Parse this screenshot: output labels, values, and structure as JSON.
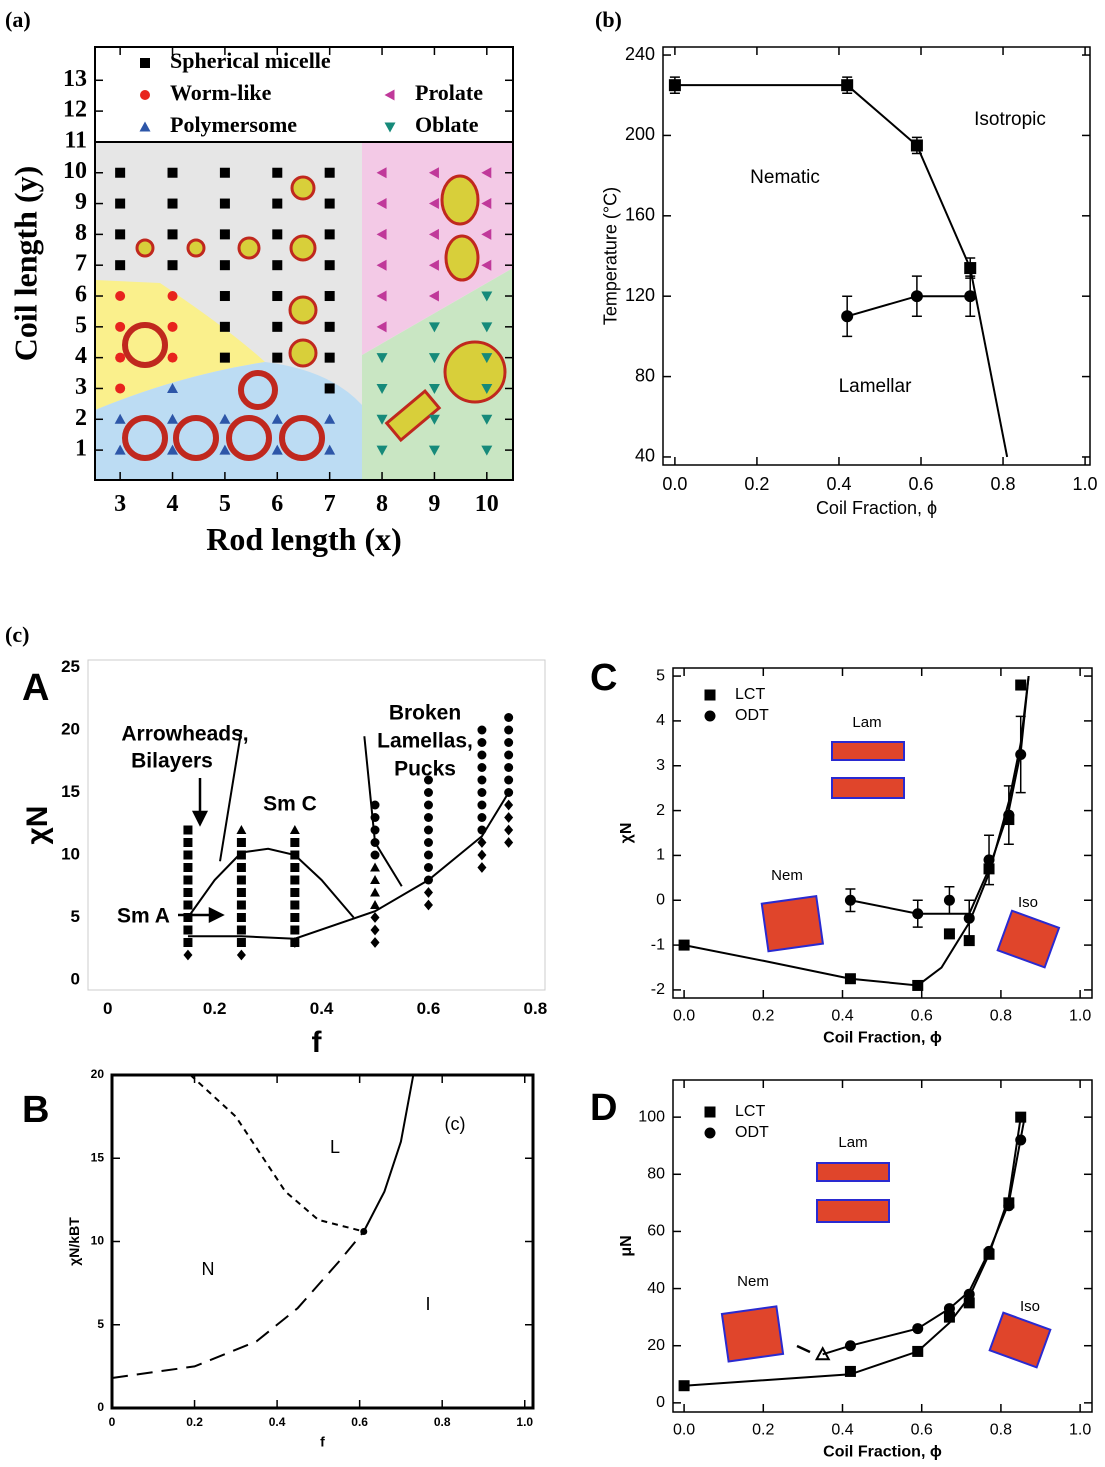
{
  "section_label": "(c)",
  "chart_data": [
    {
      "type": "scatter",
      "label": "(a)",
      "xlabel": "Rod length (x)",
      "ylabel": "Coil length (y)",
      "xlim": [
        2.52,
        10.5
      ],
      "ylim": [
        0.03,
        14.08
      ],
      "xticks": [
        3,
        4,
        5,
        6,
        7,
        8,
        9,
        10
      ],
      "yticks": [
        1,
        2,
        3,
        4,
        5,
        6,
        7,
        8,
        9,
        10,
        11,
        12,
        13
      ],
      "series": [
        {
          "name": "Spherical micelle",
          "color": "#000000",
          "marker": "square",
          "x": [
            3,
            3,
            3,
            3,
            4,
            4,
            4,
            4,
            5,
            5,
            5,
            5,
            5,
            5,
            5,
            6,
            6,
            6,
            6,
            6,
            6,
            6,
            7,
            7,
            7,
            7,
            7,
            7,
            7,
            7
          ],
          "values": [
            7,
            8,
            9,
            10,
            7,
            8,
            9,
            10,
            4,
            5,
            6,
            7,
            8,
            9,
            10,
            4,
            5,
            6,
            7,
            8,
            9,
            10,
            3,
            4,
            5,
            6,
            7,
            8,
            9,
            10
          ]
        },
        {
          "name": "Worm-like",
          "color": "#e8231d",
          "marker": "circle",
          "x": [
            3,
            3,
            3,
            3,
            4,
            4,
            4
          ],
          "values": [
            3,
            4,
            5,
            6,
            4,
            5,
            6
          ]
        },
        {
          "name": "Prolate",
          "color": "#c0399a",
          "marker": "triangle-left",
          "x": [
            8,
            8,
            8,
            8,
            8,
            8,
            9,
            9,
            9,
            9,
            9,
            10,
            10,
            10,
            10
          ],
          "values": [
            5,
            6,
            7,
            8,
            9,
            10,
            6,
            7,
            8,
            9,
            10,
            7,
            8,
            9,
            10
          ]
        },
        {
          "name": "Polymersome",
          "color": "#2d56a8",
          "marker": "triangle-up",
          "x": [
            3,
            3,
            4,
            4,
            4,
            5,
            5,
            6,
            6,
            7,
            7
          ],
          "values": [
            1,
            2,
            1,
            2,
            3,
            1,
            2,
            1,
            2,
            1,
            2
          ]
        },
        {
          "name": "Oblate",
          "color": "#168a7a",
          "marker": "triangle-down",
          "x": [
            8,
            8,
            8,
            8,
            9,
            9,
            9,
            9,
            9,
            10,
            10,
            10,
            10,
            10,
            10
          ],
          "values": [
            1,
            2,
            3,
            4,
            1,
            2,
            3,
            4,
            5,
            1,
            2,
            3,
            4,
            5,
            6
          ]
        }
      ]
    },
    {
      "type": "line",
      "label": "(b)",
      "xlabel": "Coil Fraction, ϕ",
      "ylabel": "Temperature (°C)",
      "xlim": [
        -0.029,
        1.012
      ],
      "ylim": [
        36,
        244
      ],
      "xticks": [
        {
          "value": 0,
          "label": "0.0"
        },
        0.2,
        0.4,
        0.6,
        0.8,
        {
          "value": 1,
          "label": "1.0"
        }
      ],
      "yticks": [
        40,
        80,
        120,
        160,
        200,
        240
      ],
      "annotations": [
        "Isotropic",
        "Nematic",
        "Lamellar"
      ],
      "series": [
        {
          "color": "#000000",
          "marker": "square",
          "line": true,
          "x": [
            0,
            0.42,
            0.59,
            0.72
          ],
          "values": [
            225,
            225,
            195,
            134
          ],
          "errors": [
            4,
            4,
            4,
            5
          ]
        },
        {
          "color": "#000000",
          "line": true,
          "x": [
            0.72,
            0.81
          ],
          "values": [
            134,
            40
          ]
        },
        {
          "color": "#000000",
          "marker": "circle",
          "line": true,
          "x": [
            0.42,
            0.59,
            0.72
          ],
          "values": [
            110,
            120,
            120
          ],
          "errors": [
            10,
            10,
            10
          ]
        }
      ]
    },
    {
      "type": "line",
      "label": "A",
      "xlabel": "f",
      "ylabel": "χN",
      "xlim": [
        -0.037,
        0.818
      ],
      "ylim": [
        -0.8,
        25.6
      ],
      "xticks": [
        0,
        0.2,
        0.4,
        0.6,
        0.8
      ],
      "yticks": [
        0,
        5,
        10,
        15,
        20,
        25
      ],
      "annotations": [
        "Arrowheads,",
        "Bilayers",
        "Sm C",
        "Broken",
        "Lamellas,",
        "Pucks",
        "Sm A"
      ],
      "series": [
        {
          "color": "#000000",
          "marker": "square",
          "x": [
            0.15,
            0.15,
            0.15,
            0.15,
            0.15,
            0.15,
            0.15,
            0.15,
            0.15,
            0.15,
            0.25,
            0.25,
            0.25,
            0.25,
            0.25,
            0.25,
            0.25,
            0.25,
            0.25,
            0.35,
            0.35,
            0.35,
            0.35,
            0.35,
            0.35,
            0.35,
            0.35,
            0.35
          ],
          "values": [
            3,
            4,
            5,
            6,
            7,
            8,
            9,
            10,
            11,
            12,
            3,
            4,
            5,
            6,
            7,
            8,
            9,
            10,
            11,
            3,
            4,
            5,
            6,
            7,
            8,
            9,
            10,
            11
          ]
        },
        {
          "color": "#000000",
          "marker": "triangle-up",
          "x": [
            0.25,
            0.35,
            0.5,
            0.5,
            0.5,
            0.5
          ],
          "values": [
            12,
            12,
            6,
            7,
            8,
            9
          ]
        },
        {
          "color": "#000000",
          "marker": "circle",
          "x": [
            0.5,
            0.5,
            0.5,
            0.5,
            0.5,
            0.6,
            0.6,
            0.6,
            0.6,
            0.6,
            0.6,
            0.6,
            0.6,
            0.6,
            0.7,
            0.7,
            0.7,
            0.7,
            0.7,
            0.7,
            0.7,
            0.7,
            0.7,
            0.75,
            0.75,
            0.75,
            0.75,
            0.75,
            0.75,
            0.75
          ],
          "values": [
            10,
            11,
            12,
            13,
            14,
            8,
            9,
            10,
            11,
            12,
            13,
            14,
            15,
            16,
            12,
            13,
            14,
            15,
            16,
            17,
            18,
            19,
            20,
            15,
            16,
            17,
            18,
            19,
            20,
            21
          ]
        },
        {
          "color": "#000000",
          "marker": "diamond",
          "x": [
            0.15,
            0.25,
            0.35,
            0.5,
            0.5,
            0.5,
            0.6,
            0.6,
            0.7,
            0.7,
            0.7,
            0.75,
            0.75,
            0.75,
            0.75
          ],
          "values": [
            2,
            2,
            3,
            3,
            4,
            5,
            6,
            7,
            9,
            10,
            11,
            11,
            12,
            13,
            14
          ]
        },
        {
          "color": "#000000",
          "line": true,
          "x": [
            0.15,
            0.25,
            0.35,
            0.5,
            0.6,
            0.7,
            0.75
          ],
          "values": [
            3.5,
            3.5,
            3.3,
            5.5,
            8,
            11.5,
            15
          ]
        },
        {
          "color": "#000000",
          "line": true,
          "x": [
            0.15,
            0.2,
            0.25,
            0.3,
            0.35,
            0.4,
            0.46
          ],
          "values": [
            5,
            8,
            10.2,
            10.5,
            10,
            8,
            5
          ]
        },
        {
          "color": "#000000",
          "line": true,
          "x": [
            0.21,
            0.25
          ],
          "values": [
            9.5,
            20
          ]
        },
        {
          "color": "#000000",
          "line": true,
          "x": [
            0.48,
            0.5,
            0.55
          ],
          "values": [
            19.5,
            11,
            7.5
          ]
        }
      ]
    },
    {
      "type": "line",
      "label": "B",
      "xlabel": "f",
      "ylabel": "χN/kBT",
      "xlim": [
        0,
        1.02
      ],
      "ylim": [
        0,
        20
      ],
      "xticks": [
        0,
        0.2,
        0.4,
        0.6,
        0.8,
        {
          "value": 1,
          "label": "1.0"
        }
      ],
      "yticks": [
        0,
        5,
        10,
        15,
        20
      ],
      "annotations": [
        "L",
        "N",
        "I",
        "(c)"
      ],
      "series": [
        {
          "color": "#000000",
          "line": true,
          "x": [
            0.61,
            0.66,
            0.7,
            0.73
          ],
          "values": [
            10.6,
            13,
            16,
            20
          ]
        },
        {
          "color": "#000000",
          "line": true,
          "dash": "dashed",
          "x": [
            0,
            0.2,
            0.35,
            0.45,
            0.55,
            0.61
          ],
          "values": [
            1.8,
            2.5,
            4,
            6,
            8.8,
            10.6
          ]
        },
        {
          "color": "#000000",
          "line": true,
          "dash": "short-dashed",
          "x": [
            0.19,
            0.3,
            0.42,
            0.5,
            0.61
          ],
          "values": [
            20,
            17.5,
            13,
            11.3,
            10.6
          ]
        },
        {
          "color": "#000000",
          "marker": "circle",
          "x": [
            0.61
          ],
          "values": [
            10.6
          ]
        }
      ]
    },
    {
      "type": "line",
      "label": "C",
      "xlabel": "Coil Fraction, ϕ",
      "ylabel": "χN",
      "legend": "top-left",
      "xlim": [
        -0.028,
        1.03
      ],
      "ylim": [
        -2.18,
        5.18
      ],
      "xticks": [
        {
          "value": 0,
          "label": "0.0"
        },
        0.2,
        0.4,
        0.6,
        0.8,
        {
          "value": 1,
          "label": "1.0"
        }
      ],
      "yticks": [
        -2,
        -1,
        0,
        1,
        2,
        3,
        4,
        5
      ],
      "annotations": [
        "Lam",
        "Nem",
        "Iso"
      ],
      "series": [
        {
          "name": "LCT",
          "color": "#000000",
          "marker": "square",
          "x": [
            0,
            0.42,
            0.59,
            0.67,
            0.72,
            0.77,
            0.82,
            0.85
          ],
          "values": [
            -1,
            -1.75,
            -1.9,
            -0.75,
            -0.9,
            0.7,
            1.8,
            4.8
          ]
        },
        {
          "name": "ODT",
          "color": "#000000",
          "marker": "circle",
          "x": [
            0.42,
            0.59,
            0.67,
            0.72,
            0.77,
            0.82,
            0.85
          ],
          "values": [
            0,
            -0.3,
            0,
            -0.4,
            0.9,
            1.9,
            3.25
          ],
          "errors": [
            0.25,
            0.3,
            0.3,
            0.4,
            0.55,
            0.65,
            0.85
          ]
        },
        {
          "color": "#000000",
          "line": true,
          "x": [
            0,
            0.2,
            0.42,
            0.59,
            0.65,
            0.72,
            0.77,
            0.82,
            0.85,
            0.87
          ],
          "values": [
            -1,
            -1.35,
            -1.75,
            -1.9,
            -1.5,
            -0.5,
            0.6,
            2.2,
            3.5,
            5
          ]
        },
        {
          "color": "#000000",
          "line": true,
          "x": [
            0.42,
            0.59,
            0.72,
            0.77,
            0.82,
            0.85,
            0.87
          ],
          "values": [
            0,
            -0.3,
            -0.3,
            0.7,
            2,
            3.3,
            5
          ]
        }
      ]
    },
    {
      "type": "line",
      "label": "D",
      "xlabel": "Coil Fraction, ϕ",
      "ylabel": "μN",
      "legend": "top-left",
      "xlim": [
        -0.028,
        1.03
      ],
      "ylim": [
        -3.2,
        113
      ],
      "xticks": [
        {
          "value": 0,
          "label": "0.0"
        },
        0.2,
        0.4,
        0.6,
        0.8,
        {
          "value": 1,
          "label": "1.0"
        }
      ],
      "yticks": [
        0,
        20,
        40,
        60,
        80,
        100
      ],
      "annotations": [
        "Lam",
        "Nem",
        "Iso"
      ],
      "series": [
        {
          "name": "LCT",
          "color": "#000000",
          "marker": "square",
          "x": [
            0,
            0.42,
            0.59,
            0.67,
            0.72,
            0.77,
            0.82,
            0.85
          ],
          "values": [
            6,
            11,
            18,
            30,
            35,
            52,
            70,
            100
          ]
        },
        {
          "name": "ODT",
          "color": "#000000",
          "marker": "circle",
          "x": [
            0.42,
            0.59,
            0.67,
            0.72,
            0.77,
            0.82,
            0.85
          ],
          "values": [
            20,
            26,
            33,
            38,
            53,
            69,
            92
          ]
        },
        {
          "color": "#000000",
          "marker": "triangle-up",
          "open": true,
          "x": [
            0.35
          ],
          "values": [
            17
          ]
        },
        {
          "color": "#000000",
          "line": true,
          "x": [
            0,
            0.42,
            0.59,
            0.67,
            0.72,
            0.77,
            0.82,
            0.85
          ],
          "values": [
            6,
            10,
            18,
            28,
            37,
            52,
            72,
            100
          ]
        },
        {
          "color": "#000000",
          "line": true,
          "x": [
            0.35,
            0.42,
            0.59,
            0.67,
            0.72,
            0.77,
            0.82,
            0.86
          ],
          "values": [
            17,
            20,
            26,
            33,
            39,
            53,
            70,
            100
          ]
        }
      ]
    }
  ]
}
